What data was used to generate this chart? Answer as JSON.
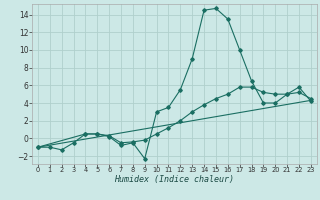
{
  "title": "",
  "xlabel": "Humidex (Indice chaleur)",
  "bg_color": "#cce8e6",
  "grid_color": "#b0d0cc",
  "line_color": "#1a6e62",
  "xlim": [
    -0.5,
    23.5
  ],
  "ylim": [
    -2.9,
    15.2
  ],
  "yticks": [
    -2,
    0,
    2,
    4,
    6,
    8,
    10,
    12,
    14
  ],
  "xticks": [
    0,
    1,
    2,
    3,
    4,
    5,
    6,
    7,
    8,
    9,
    10,
    11,
    12,
    13,
    14,
    15,
    16,
    17,
    18,
    19,
    20,
    21,
    22,
    23
  ],
  "line1_x": [
    0,
    1,
    2,
    3,
    4,
    5,
    6,
    7,
    8,
    9,
    10,
    11,
    12,
    13,
    14,
    15,
    16,
    17,
    18,
    19,
    20,
    21,
    22,
    23
  ],
  "line1_y": [
    -1.0,
    -1.0,
    -1.3,
    -0.5,
    0.5,
    0.5,
    0.2,
    -0.8,
    -0.5,
    -2.3,
    3.0,
    3.5,
    5.5,
    9.0,
    14.5,
    14.7,
    13.5,
    10.0,
    6.5,
    4.0,
    4.0,
    5.0,
    5.8,
    4.2
  ],
  "line2_x": [
    0,
    4,
    5,
    6,
    7,
    8,
    9,
    10,
    11,
    12,
    13,
    14,
    15,
    16,
    17,
    18,
    19,
    20,
    21,
    22,
    23
  ],
  "line2_y": [
    -1.0,
    0.5,
    0.5,
    0.3,
    -0.5,
    -0.4,
    -0.2,
    0.5,
    1.2,
    2.0,
    3.0,
    3.8,
    4.5,
    5.0,
    5.8,
    5.8,
    5.2,
    5.0,
    5.0,
    5.2,
    4.5
  ],
  "line3_x": [
    0,
    23
  ],
  "line3_y": [
    -1.0,
    4.3
  ]
}
